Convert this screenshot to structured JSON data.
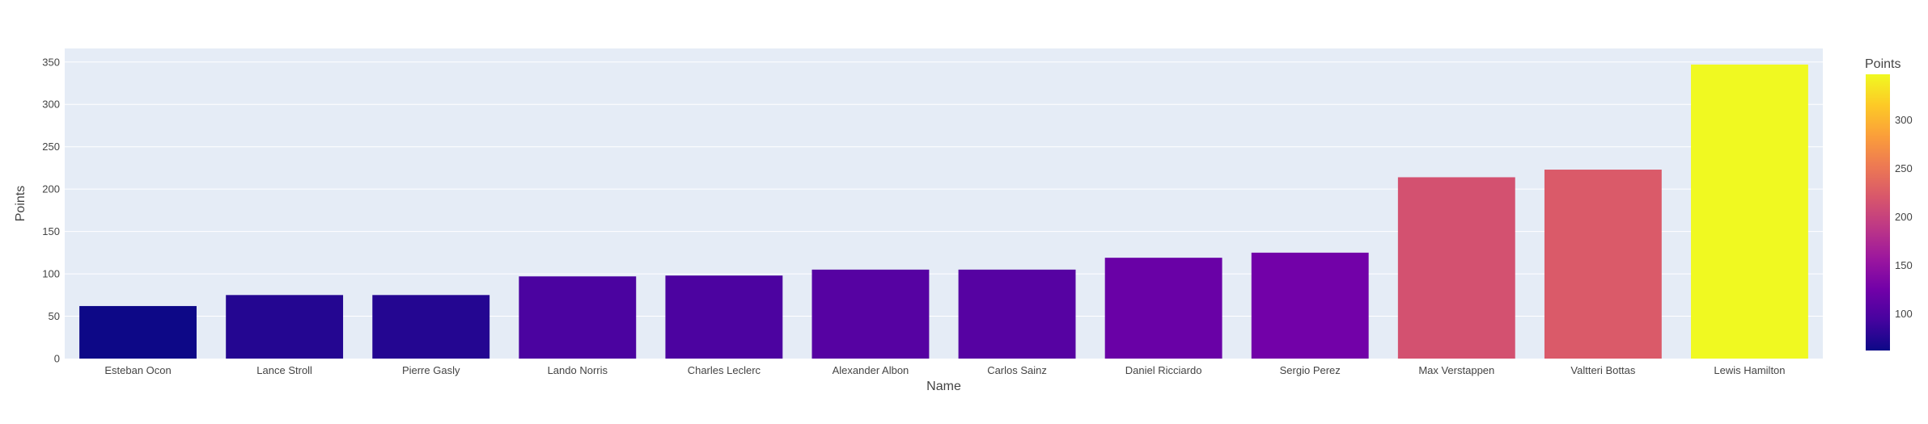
{
  "chart_data": {
    "type": "bar",
    "title": "",
    "xlabel": "Name",
    "ylabel": "Points",
    "ylim": [
      0,
      366
    ],
    "yticks": [
      0,
      50,
      100,
      150,
      200,
      250,
      300,
      350
    ],
    "grid": true,
    "plot_background": "#e5ecf6",
    "categories": [
      "Esteban Ocon",
      "Lance Stroll",
      "Pierre Gasly",
      "Lando Norris",
      "Charles Leclerc",
      "Alexander Albon",
      "Carlos Sainz",
      "Daniel Ricciardo",
      "Sergio Perez",
      "Max Verstappen",
      "Valtteri Bottas",
      "Lewis Hamilton"
    ],
    "values": [
      62,
      75,
      75,
      97,
      98,
      105,
      105,
      119,
      125,
      214,
      223,
      347
    ],
    "colorbar": {
      "title": "Points",
      "range": [
        62,
        347
      ],
      "ticks": [
        100,
        150,
        200,
        250,
        300
      ],
      "colorscale": [
        "#0d0887",
        "#46039f",
        "#7201a8",
        "#9c179e",
        "#bd3786",
        "#d8576b",
        "#ed7953",
        "#fb9f3a",
        "#fdca26",
        "#f0f921"
      ]
    }
  }
}
